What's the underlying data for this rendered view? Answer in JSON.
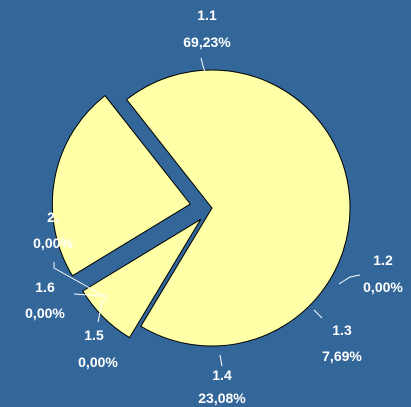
{
  "chart_data": {
    "type": "pie",
    "categories": [
      "1.1",
      "1.2",
      "1.3",
      "1.4",
      "1.5",
      "1.6",
      "2."
    ],
    "values": [
      69.23,
      0.0,
      7.69,
      23.08,
      0.0,
      0.0,
      0.0
    ],
    "value_labels": [
      "69,23%",
      "0,00%",
      "7,69%",
      "23,08%",
      "0,00%",
      "0,00%",
      "0,00%"
    ],
    "exploded": true,
    "slice_color": "#FFFFA8",
    "background_color": "#336699"
  }
}
